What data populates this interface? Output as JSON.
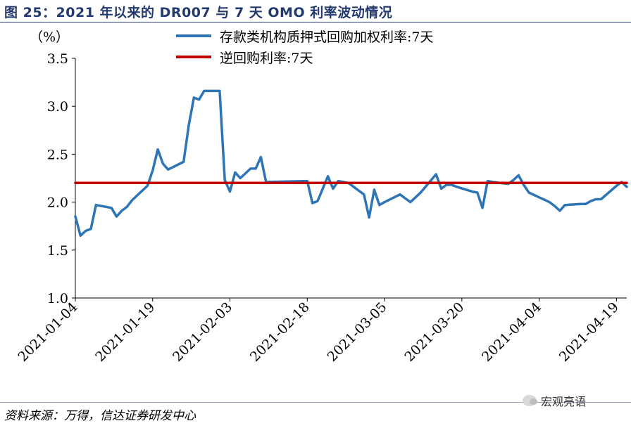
{
  "title": "图 25：2021 年以来的 DR007 与 7 天 OMO 利率波动情况",
  "source": "资料来源：万得，信达证券研发中心",
  "watermark": "宏观亮语",
  "chart_data": {
    "type": "line",
    "unit_label": "（%）",
    "ylim": [
      1.0,
      3.5
    ],
    "yticks": [
      "1.0",
      "1.5",
      "2.0",
      "2.5",
      "3.0",
      "3.5"
    ],
    "xticks": [
      "2021-01-04",
      "2021-01-19",
      "2021-02-03",
      "2021-02-18",
      "2021-03-05",
      "2021-03-20",
      "2021-04-04",
      "2021-04-19"
    ],
    "xlim": [
      "2021-01-04",
      "2021-04-21"
    ],
    "legend_position": "top",
    "colors": {
      "dr007": "#2e75b6",
      "omo": "#c00000",
      "title": "#243a6e"
    },
    "series": [
      {
        "name": "存款类机构质押式回购加权利率:7天",
        "x": [
          "2021-01-04",
          "2021-01-05",
          "2021-01-06",
          "2021-01-07",
          "2021-01-08",
          "2021-01-11",
          "2021-01-12",
          "2021-01-13",
          "2021-01-14",
          "2021-01-15",
          "2021-01-18",
          "2021-01-19",
          "2021-01-20",
          "2021-01-21",
          "2021-01-22",
          "2021-01-25",
          "2021-01-26",
          "2021-01-27",
          "2021-01-28",
          "2021-01-29",
          "2021-02-01",
          "2021-02-02",
          "2021-02-03",
          "2021-02-04",
          "2021-02-05",
          "2021-02-07",
          "2021-02-08",
          "2021-02-09",
          "2021-02-10",
          "2021-02-18",
          "2021-02-19",
          "2021-02-20",
          "2021-02-22",
          "2021-02-23",
          "2021-02-24",
          "2021-02-25",
          "2021-02-26",
          "2021-03-01",
          "2021-03-02",
          "2021-03-03",
          "2021-03-04",
          "2021-03-05",
          "2021-03-08",
          "2021-03-09",
          "2021-03-10",
          "2021-03-11",
          "2021-03-12",
          "2021-03-15",
          "2021-03-16",
          "2021-03-17",
          "2021-03-18",
          "2021-03-19",
          "2021-03-22",
          "2021-03-23",
          "2021-03-24",
          "2021-03-25",
          "2021-03-26",
          "2021-03-29",
          "2021-03-30",
          "2021-03-31",
          "2021-04-01",
          "2021-04-02",
          "2021-04-06",
          "2021-04-07",
          "2021-04-08",
          "2021-04-09",
          "2021-04-12",
          "2021-04-13",
          "2021-04-14",
          "2021-04-15",
          "2021-04-16",
          "2021-04-19",
          "2021-04-20",
          "2021-04-21"
        ],
        "values": [
          1.85,
          1.65,
          1.7,
          1.72,
          1.97,
          1.94,
          1.85,
          1.91,
          1.95,
          2.02,
          2.17,
          2.33,
          2.55,
          2.4,
          2.34,
          2.42,
          2.8,
          3.09,
          3.07,
          3.16,
          3.16,
          2.23,
          2.11,
          2.31,
          2.25,
          2.35,
          2.35,
          2.47,
          2.21,
          2.22,
          1.99,
          2.01,
          2.27,
          2.14,
          2.22,
          2.21,
          2.2,
          2.08,
          1.84,
          2.13,
          1.97,
          2.0,
          2.08,
          2.04,
          2.0,
          2.05,
          2.1,
          2.29,
          2.14,
          2.18,
          2.18,
          2.16,
          2.11,
          2.1,
          1.94,
          2.22,
          2.21,
          2.19,
          2.23,
          2.28,
          2.18,
          2.1,
          2.0,
          1.96,
          1.91,
          1.97,
          1.98,
          1.98,
          2.01,
          2.03,
          2.03,
          2.17,
          2.21,
          2.16
        ]
      },
      {
        "name": "逆回购利率:7天",
        "x": [
          "2021-01-04",
          "2021-04-21"
        ],
        "values": [
          2.2,
          2.2
        ]
      }
    ]
  }
}
